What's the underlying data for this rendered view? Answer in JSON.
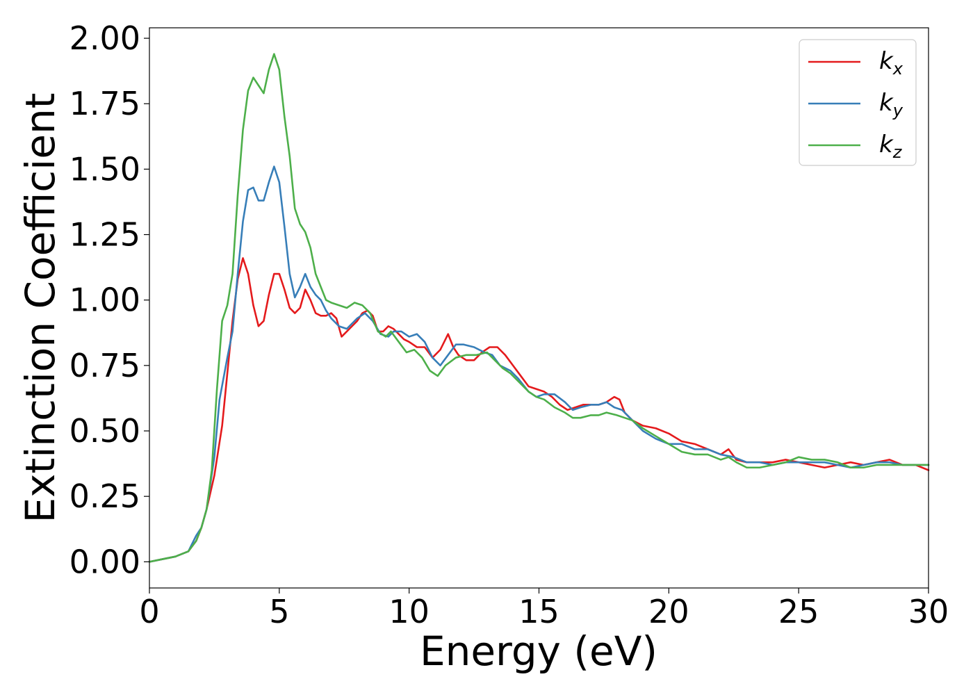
{
  "chart_data": {
    "type": "line",
    "title": "",
    "xlabel": "Energy (eV)",
    "ylabel": "Extinction Coefficient",
    "xlim": [
      0,
      30
    ],
    "ylim": [
      -0.1,
      2.04
    ],
    "xticks": [
      0,
      5,
      10,
      15,
      20,
      25,
      30
    ],
    "xtick_labels": [
      "0",
      "5",
      "10",
      "15",
      "20",
      "25",
      "30"
    ],
    "yticks": [
      0.0,
      0.25,
      0.5,
      0.75,
      1.0,
      1.25,
      1.5,
      1.75,
      2.0
    ],
    "ytick_labels": [
      "0.00",
      "0.25",
      "0.50",
      "0.75",
      "1.00",
      "1.25",
      "1.50",
      "1.75",
      "2.00"
    ],
    "grid": false,
    "legend_position": "top-right",
    "series": [
      {
        "name": "k",
        "subscript": "x",
        "color": "#e41a1c",
        "x": [
          0,
          0.5,
          1.0,
          1.5,
          1.8,
          2.0,
          2.2,
          2.5,
          2.8,
          3.0,
          3.2,
          3.4,
          3.6,
          3.8,
          4.0,
          4.2,
          4.4,
          4.6,
          4.8,
          5.0,
          5.2,
          5.4,
          5.6,
          5.8,
          6.0,
          6.2,
          6.4,
          6.6,
          6.8,
          7.0,
          7.2,
          7.4,
          7.6,
          7.8,
          8.0,
          8.2,
          8.4,
          8.6,
          8.8,
          9.0,
          9.2,
          9.4,
          9.6,
          9.8,
          10.0,
          10.3,
          10.6,
          10.9,
          11.2,
          11.5,
          11.7,
          11.9,
          12.2,
          12.5,
          12.8,
          13.1,
          13.4,
          13.7,
          14.0,
          14.3,
          14.6,
          14.9,
          15.2,
          15.5,
          15.8,
          16.1,
          16.4,
          16.7,
          17.0,
          17.3,
          17.6,
          17.9,
          18.1,
          18.3,
          18.6,
          19.0,
          19.5,
          20.0,
          20.5,
          21.0,
          21.5,
          22.0,
          22.3,
          22.6,
          23.0,
          23.5,
          24.0,
          24.5,
          25.0,
          25.5,
          26.0,
          26.5,
          27.0,
          27.5,
          28.0,
          28.5,
          29.0,
          29.5,
          30.0
        ],
        "y": [
          0.0,
          0.01,
          0.02,
          0.04,
          0.08,
          0.13,
          0.2,
          0.33,
          0.52,
          0.72,
          0.92,
          1.08,
          1.16,
          1.1,
          0.98,
          0.9,
          0.92,
          1.02,
          1.1,
          1.1,
          1.04,
          0.97,
          0.95,
          0.97,
          1.04,
          1.0,
          0.95,
          0.94,
          0.94,
          0.95,
          0.93,
          0.86,
          0.88,
          0.9,
          0.92,
          0.95,
          0.96,
          0.94,
          0.88,
          0.88,
          0.9,
          0.89,
          0.87,
          0.85,
          0.84,
          0.82,
          0.82,
          0.78,
          0.81,
          0.87,
          0.82,
          0.79,
          0.77,
          0.77,
          0.8,
          0.82,
          0.82,
          0.79,
          0.75,
          0.71,
          0.67,
          0.66,
          0.65,
          0.63,
          0.6,
          0.58,
          0.59,
          0.6,
          0.6,
          0.6,
          0.61,
          0.63,
          0.62,
          0.57,
          0.54,
          0.52,
          0.51,
          0.49,
          0.46,
          0.45,
          0.43,
          0.41,
          0.43,
          0.39,
          0.38,
          0.38,
          0.38,
          0.39,
          0.38,
          0.37,
          0.36,
          0.37,
          0.38,
          0.37,
          0.38,
          0.39,
          0.37,
          0.37,
          0.35
        ]
      },
      {
        "name": "k",
        "subscript": "y",
        "color": "#377eb8",
        "x": [
          0,
          0.5,
          1.0,
          1.5,
          1.8,
          2.0,
          2.2,
          2.5,
          2.7,
          3.0,
          3.2,
          3.4,
          3.6,
          3.8,
          4.0,
          4.2,
          4.4,
          4.6,
          4.8,
          5.0,
          5.2,
          5.4,
          5.6,
          5.8,
          6.0,
          6.2,
          6.4,
          6.6,
          6.8,
          7.0,
          7.3,
          7.6,
          8.0,
          8.3,
          8.6,
          8.9,
          9.2,
          9.4,
          9.7,
          10.0,
          10.3,
          10.6,
          10.9,
          11.2,
          11.5,
          11.8,
          12.1,
          12.5,
          12.9,
          13.2,
          13.5,
          13.9,
          14.2,
          14.6,
          14.9,
          15.2,
          15.6,
          16.0,
          16.3,
          16.6,
          17.0,
          17.3,
          17.6,
          17.9,
          18.2,
          18.6,
          19.0,
          19.5,
          20.0,
          20.5,
          21.0,
          21.5,
          22.0,
          22.5,
          23.0,
          23.5,
          24.0,
          24.5,
          25.0,
          25.5,
          26.0,
          26.5,
          27.0,
          27.5,
          28.0,
          28.5,
          29.0,
          29.5,
          30.0
        ],
        "y": [
          0.0,
          0.01,
          0.02,
          0.04,
          0.1,
          0.13,
          0.2,
          0.4,
          0.62,
          0.78,
          0.88,
          1.1,
          1.3,
          1.42,
          1.43,
          1.38,
          1.38,
          1.45,
          1.51,
          1.45,
          1.28,
          1.1,
          1.01,
          1.05,
          1.1,
          1.05,
          1.02,
          1.0,
          0.96,
          0.93,
          0.9,
          0.89,
          0.93,
          0.95,
          0.92,
          0.87,
          0.86,
          0.88,
          0.88,
          0.86,
          0.87,
          0.84,
          0.78,
          0.75,
          0.79,
          0.83,
          0.83,
          0.82,
          0.8,
          0.79,
          0.75,
          0.73,
          0.7,
          0.65,
          0.63,
          0.64,
          0.64,
          0.61,
          0.58,
          0.59,
          0.6,
          0.6,
          0.61,
          0.59,
          0.58,
          0.54,
          0.5,
          0.47,
          0.45,
          0.45,
          0.43,
          0.43,
          0.41,
          0.4,
          0.38,
          0.38,
          0.37,
          0.38,
          0.38,
          0.38,
          0.38,
          0.37,
          0.36,
          0.37,
          0.38,
          0.38,
          0.37,
          0.37,
          0.37
        ]
      },
      {
        "name": "k",
        "subscript": "z",
        "color": "#4daf4a",
        "x": [
          0,
          0.5,
          1.0,
          1.5,
          1.8,
          2.0,
          2.2,
          2.4,
          2.6,
          2.8,
          3.0,
          3.2,
          3.4,
          3.6,
          3.8,
          4.0,
          4.2,
          4.4,
          4.6,
          4.8,
          5.0,
          5.2,
          5.4,
          5.6,
          5.8,
          6.0,
          6.2,
          6.4,
          6.6,
          6.8,
          7.0,
          7.3,
          7.6,
          7.9,
          8.2,
          8.5,
          8.8,
          9.1,
          9.3,
          9.6,
          9.9,
          10.2,
          10.5,
          10.8,
          11.1,
          11.4,
          11.8,
          12.2,
          12.6,
          13.0,
          13.3,
          13.6,
          13.9,
          14.2,
          14.6,
          14.9,
          15.2,
          15.6,
          16.0,
          16.3,
          16.6,
          17.0,
          17.3,
          17.6,
          18.0,
          18.3,
          18.6,
          19.0,
          19.5,
          20.0,
          20.5,
          21.0,
          21.5,
          22.0,
          22.3,
          22.6,
          23.0,
          23.5,
          24.0,
          24.5,
          25.0,
          25.5,
          26.0,
          26.5,
          27.0,
          27.5,
          28.0,
          28.5,
          29.0,
          29.5,
          30.0
        ],
        "y": [
          0.0,
          0.01,
          0.02,
          0.04,
          0.08,
          0.13,
          0.2,
          0.35,
          0.66,
          0.92,
          0.98,
          1.1,
          1.4,
          1.65,
          1.8,
          1.85,
          1.82,
          1.79,
          1.88,
          1.94,
          1.88,
          1.7,
          1.55,
          1.35,
          1.29,
          1.26,
          1.2,
          1.1,
          1.05,
          1.0,
          0.99,
          0.98,
          0.97,
          0.99,
          0.98,
          0.95,
          0.88,
          0.86,
          0.88,
          0.84,
          0.8,
          0.81,
          0.78,
          0.73,
          0.71,
          0.75,
          0.78,
          0.79,
          0.79,
          0.8,
          0.77,
          0.74,
          0.72,
          0.69,
          0.65,
          0.63,
          0.62,
          0.59,
          0.57,
          0.55,
          0.55,
          0.56,
          0.56,
          0.57,
          0.56,
          0.55,
          0.54,
          0.51,
          0.48,
          0.45,
          0.42,
          0.41,
          0.41,
          0.39,
          0.4,
          0.38,
          0.36,
          0.36,
          0.37,
          0.38,
          0.4,
          0.39,
          0.39,
          0.38,
          0.36,
          0.36,
          0.37,
          0.37,
          0.37,
          0.37,
          0.37
        ]
      }
    ]
  }
}
